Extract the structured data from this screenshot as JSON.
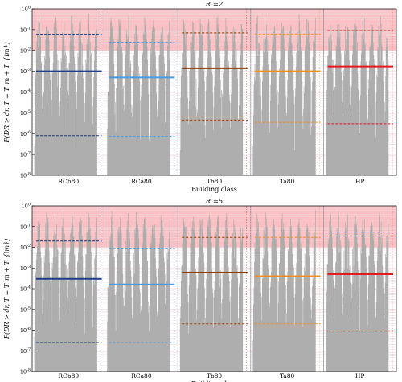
{
  "chart_data": [
    {
      "type": "line",
      "title": "R =2",
      "xlabel": "Building class",
      "ylabel": "P(DR > dr, T = T_m + T_{im})",
      "yscale": "log",
      "ylim": [
        1e-08,
        1
      ],
      "ytick_labels": [
        "10^0",
        "10^-1",
        "10^-2",
        "10^-3",
        "10^-4",
        "10^-5",
        "10^-6",
        "10^-7",
        "10^-8"
      ],
      "categories": [
        "RCb80",
        "RCa80",
        "Tb80",
        "Ta80",
        "HP"
      ],
      "shaded_band": {
        "from": 0.01,
        "to": 1,
        "color": "#f9b5b8"
      },
      "series": [
        {
          "values": [
            0.001,
            0.0005,
            0.0014,
            0.001,
            0.0017
          ]
        },
        {
          "values": [
            0.06,
            0.025,
            0.07,
            0.06,
            0.09
          ]
        },
        {
          "values": [
            8e-07,
            7.5e-07,
            4.5e-06,
            3.5e-06,
            3e-06
          ]
        }
      ]
    },
    {
      "type": "line",
      "title": "R =5",
      "xlabel": "Building class",
      "ylabel": "P(DR > dr, T = T_m + T_{im})",
      "yscale": "log",
      "ylim": [
        1e-08,
        1
      ],
      "ytick_labels": [
        "10^0",
        "10^-1",
        "10^-2",
        "10^-3",
        "10^-4",
        "10^-5",
        "10^-6",
        "10^-7",
        "10^-8"
      ],
      "categories": [
        "RCb80",
        "RCa80",
        "Tb80",
        "Ta80",
        "HP"
      ],
      "shaded_band": {
        "from": 0.01,
        "to": 1,
        "color": "#f9b5b8"
      },
      "series": [
        {
          "values": [
            0.0003,
            0.00016,
            0.0006,
            0.0004,
            0.0005
          ]
        },
        {
          "values": [
            0.02,
            0.009,
            0.03,
            0.03,
            0.035
          ]
        },
        {
          "values": [
            2.5e-07,
            2.5e-07,
            2e-06,
            2e-06,
            9e-07
          ]
        }
      ]
    }
  ],
  "colors": [
    "#1f3c88",
    "#4a9be0",
    "#8b3a00",
    "#f28c1e",
    "#e41a1c"
  ],
  "band_color": "#f9b5b8",
  "histogram_color": "#aaaaaa"
}
